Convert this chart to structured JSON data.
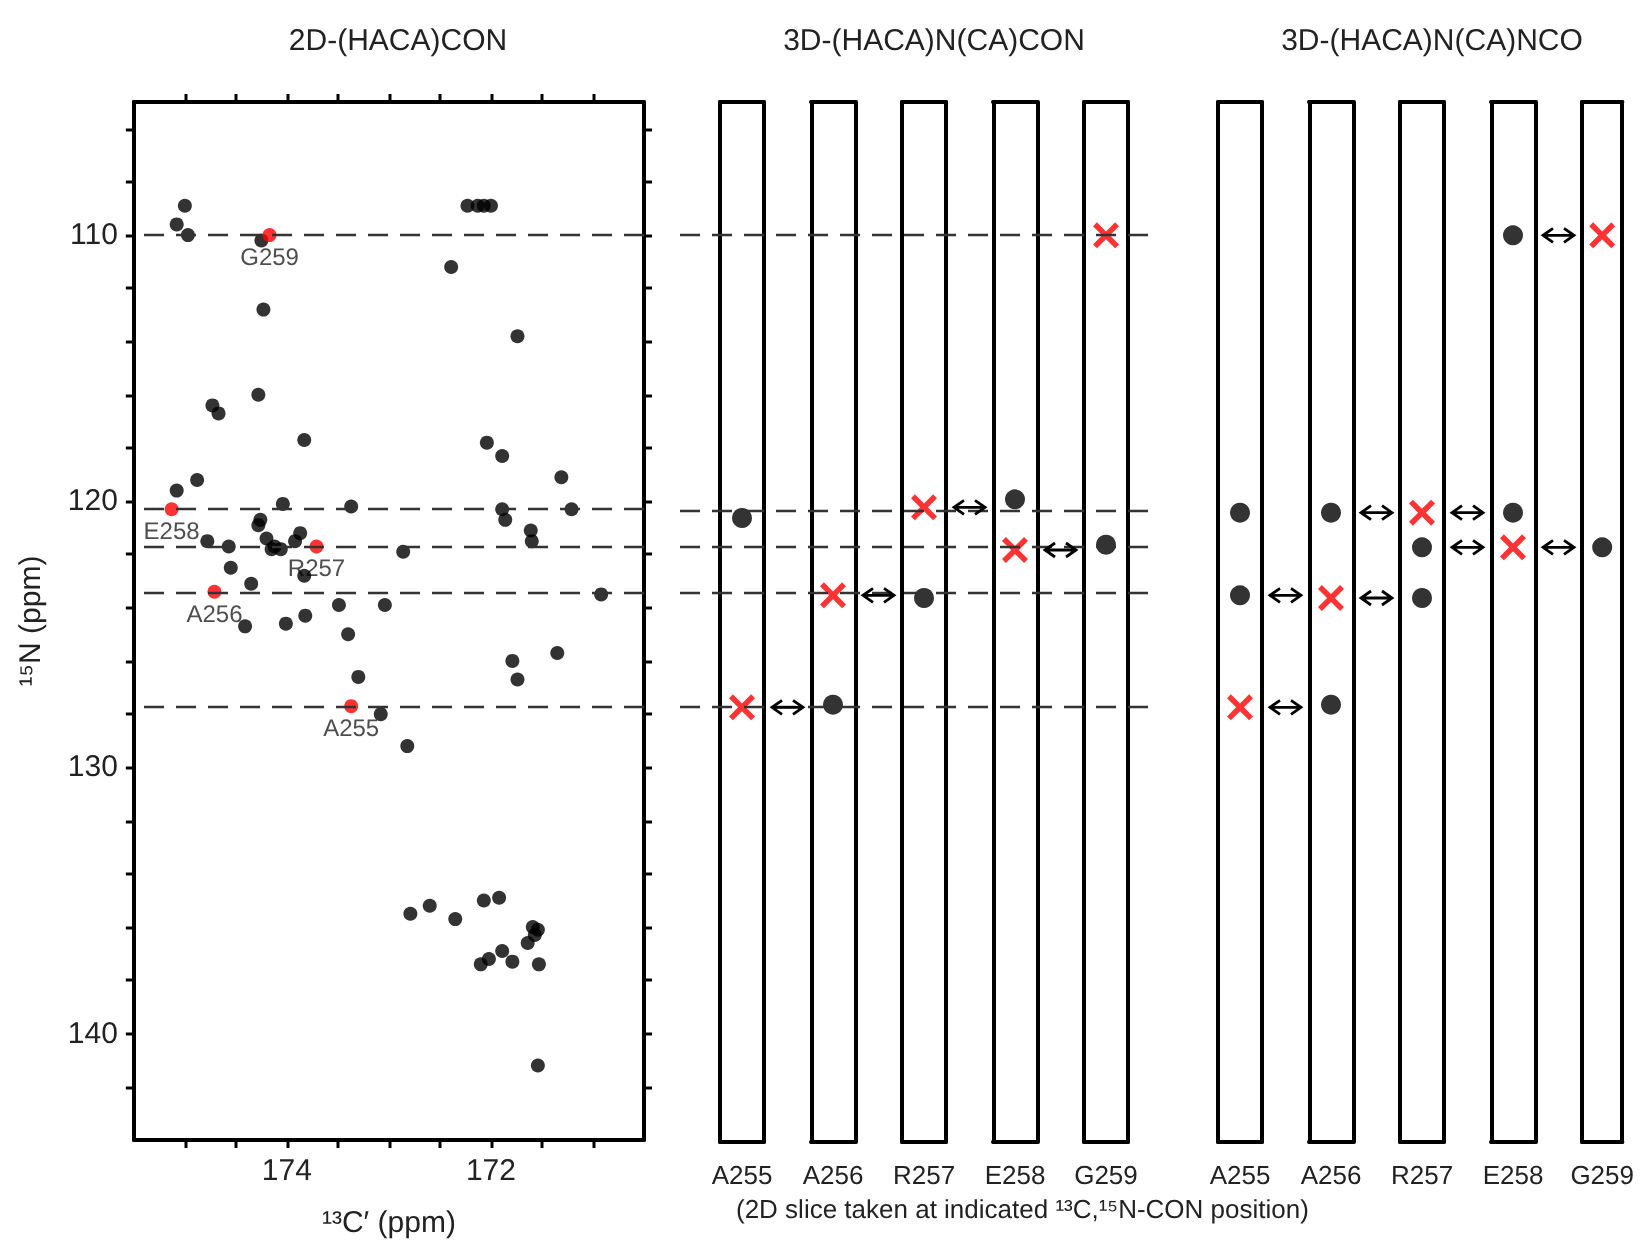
{
  "chart_data": [
    {
      "type": "scatter",
      "title": "2D-(HACA)CON",
      "xlabel": "¹³C′ (ppm)",
      "ylabel": "¹⁵N (ppm)",
      "xlim": [
        175.5,
        170.5
      ],
      "xticks": [
        {
          "value": 175,
          "label": null
        },
        {
          "value": 174.5,
          "label": null
        },
        174,
        {
          "value": 173.5,
          "label": null
        },
        {
          "value": 173,
          "label": null
        },
        {
          "value": 172.5,
          "label": null
        },
        172,
        {
          "value": 171.5,
          "label": null
        },
        {
          "value": 171,
          "label": null
        }
      ],
      "ylim": [
        144,
        105
      ],
      "yticks": [
        {
          "value": 106,
          "label": null
        },
        {
          "value": 108,
          "label": null
        },
        110,
        {
          "value": 112,
          "label": null
        },
        {
          "value": 114,
          "label": null
        },
        {
          "value": 116,
          "label": null
        },
        {
          "value": 118,
          "label": null
        },
        120,
        {
          "value": 122,
          "label": null
        },
        {
          "value": 124,
          "label": null
        },
        {
          "value": 126,
          "label": null
        },
        {
          "value": 128,
          "label": null
        },
        130,
        {
          "value": 132,
          "label": null
        },
        {
          "value": 134,
          "label": null
        },
        {
          "value": 136,
          "label": null
        },
        {
          "value": 138,
          "label": null
        },
        140,
        {
          "value": 142,
          "label": null
        }
      ],
      "series": [
        {
          "color": "#000000",
          "marker": "circle",
          "x": [
            175.0,
            175.08,
            174.97,
            174.25,
            172.39,
            172.23,
            172.13,
            172.07,
            172.0,
            174.23,
            171.74,
            174.73,
            174.67,
            174.28,
            173.83,
            172.04,
            171.89,
            171.31,
            175.08,
            174.88,
            174.04,
            173.37,
            171.89,
            171.21,
            171.86,
            174.26,
            174.28,
            174.78,
            174.57,
            174.2,
            174.12,
            174.06,
            174.15,
            173.92,
            173.87,
            172.86,
            171.61,
            171.6,
            174.55,
            174.35,
            173.83,
            170.92,
            173.49,
            173.04,
            174.41,
            174.01,
            173.82,
            173.4,
            171.79,
            171.35,
            171.74,
            173.3,
            173.08,
            172.82,
            172.79,
            172.6,
            172.35,
            172.07,
            171.92,
            172.1,
            172.02,
            171.89,
            171.79,
            171.64,
            171.59,
            171.57,
            171.54,
            171.53,
            171.54
          ],
          "values": [
            108.9,
            109.6,
            110.0,
            110.2,
            111.2,
            108.9,
            108.9,
            108.9,
            108.9,
            112.8,
            113.8,
            116.4,
            116.7,
            116.0,
            117.7,
            117.8,
            118.3,
            119.1,
            119.6,
            119.2,
            120.1,
            120.2,
            120.3,
            120.3,
            120.7,
            120.7,
            120.9,
            121.5,
            121.7,
            121.4,
            121.7,
            121.8,
            121.8,
            121.5,
            121.2,
            121.9,
            121.1,
            121.5,
            122.5,
            123.1,
            122.8,
            123.5,
            123.9,
            123.9,
            124.7,
            124.6,
            124.3,
            125.0,
            126.0,
            125.7,
            126.7,
            126.6,
            128.0,
            129.2,
            135.5,
            135.2,
            135.7,
            135.0,
            134.9,
            137.4,
            137.2,
            136.9,
            137.3,
            136.6,
            136.0,
            136.3,
            136.1,
            137.4,
            141.2
          ]
        },
        {
          "color": "#ff0000",
          "marker": "circle",
          "x": [
            174.17,
            175.13,
            173.71,
            174.71,
            173.37
          ],
          "values": [
            110.0,
            120.3,
            121.7,
            123.4,
            127.7
          ]
        }
      ],
      "annotations": [
        {
          "text": "G259",
          "x": 174.17,
          "y": 110.0
        },
        {
          "text": "E258",
          "x": 175.13,
          "y": 120.3
        },
        {
          "text": "R257",
          "x": 173.71,
          "y": 121.7
        },
        {
          "text": "A256",
          "x": 174.71,
          "y": 123.4
        },
        {
          "text": "A255",
          "x": 173.37,
          "y": 127.7
        }
      ],
      "ref_lines": [
        {
          "axis": "y",
          "value": 110.0,
          "line_style": "dashed",
          "color": "#333333"
        },
        {
          "axis": "y",
          "value": 120.3,
          "line_style": "dashed",
          "color": "#333333"
        },
        {
          "axis": "y",
          "value": 121.7,
          "line_style": "dashed",
          "color": "#333333"
        },
        {
          "axis": "y",
          "value": 123.4,
          "line_style": "dashed",
          "color": "#333333"
        },
        {
          "axis": "y",
          "value": 127.7,
          "line_style": "dashed",
          "color": "#333333"
        }
      ]
    },
    {
      "type": "scatter",
      "title": "3D-(HACA)N(CA)CON",
      "categories": [
        "A255",
        "A256",
        "R257",
        "E258",
        "G259"
      ],
      "ylim": [
        144,
        105
      ],
      "tick_labels": "x",
      "series": [
        {
          "color": "#000000",
          "marker": "circle",
          "x": [
            "A255",
            "A256",
            "R257",
            "E258",
            "G259"
          ],
          "values": [
            120.6,
            127.6,
            123.6,
            119.9,
            121.6
          ]
        },
        {
          "color": "#ff0000",
          "marker": "cross",
          "x": [
            "A255",
            "A256",
            "R257",
            "E258",
            "G259"
          ],
          "values": [
            127.7,
            123.5,
            120.2,
            121.8,
            110.0
          ]
        }
      ],
      "ref_lines": [
        {
          "axis": "y",
          "value": 110.0,
          "line_style": "dashed",
          "color": "#333333"
        },
        {
          "axis": "y",
          "value": 120.3,
          "line_style": "dashed",
          "color": "#333333"
        },
        {
          "axis": "y",
          "value": 121.7,
          "line_style": "dashed",
          "color": "#333333"
        },
        {
          "axis": "y",
          "value": 123.4,
          "line_style": "dashed",
          "color": "#333333"
        },
        {
          "axis": "y",
          "value": 127.7,
          "line_style": "dashed",
          "color": "#333333"
        }
      ],
      "annotations": [
        "(2D slice taken at indicated ¹³C,¹⁵N-CON position)"
      ]
    },
    {
      "type": "scatter",
      "title": "3D-(HACA)N(CA)NCO",
      "categories": [
        "A255",
        "A256",
        "R257",
        "E258",
        "G259"
      ],
      "ylim": [
        144,
        105
      ],
      "tick_labels": "x",
      "series": [
        {
          "color": "#000000",
          "marker": "circle",
          "x": [
            "A255",
            "A255",
            "A256",
            "A256",
            "R257",
            "R257",
            "E258",
            "E258",
            "G259"
          ],
          "values": [
            120.4,
            123.5,
            120.4,
            127.6,
            121.7,
            123.6,
            110.0,
            120.4,
            121.7
          ]
        },
        {
          "color": "#ff0000",
          "marker": "cross",
          "x": [
            "A255",
            "A256",
            "R257",
            "E258",
            "G259"
          ],
          "values": [
            127.7,
            123.6,
            120.4,
            121.7,
            110.0
          ]
        }
      ]
    }
  ]
}
